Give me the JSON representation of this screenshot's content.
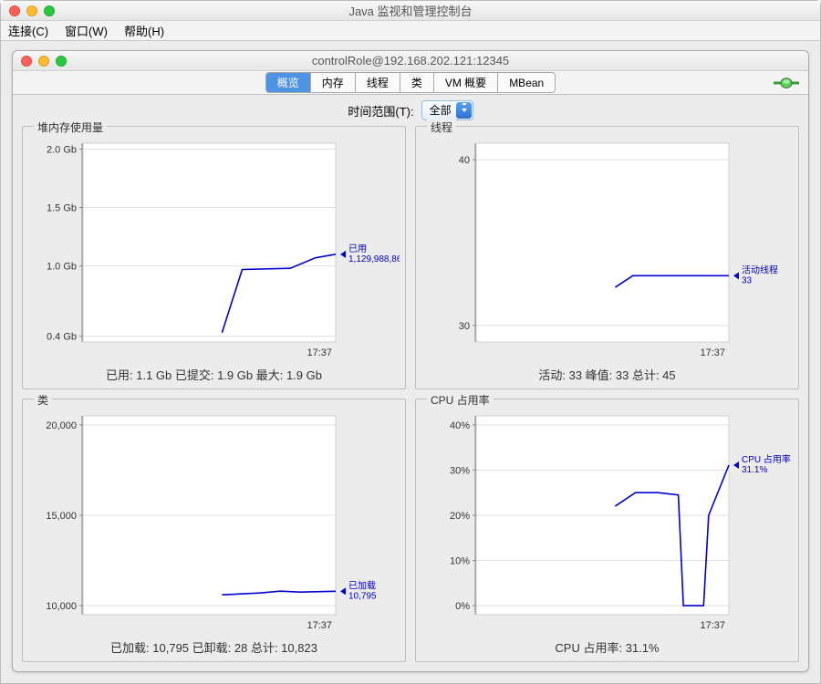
{
  "outer_window": {
    "title": "Java 监视和管理控制台",
    "menus": {
      "connect": "连接(C)",
      "window": "窗口(W)",
      "help": "帮助(H)"
    }
  },
  "inner_window": {
    "title": "controlRole@192.168.202.121:12345",
    "tabs": {
      "overview": "概览",
      "memory": "内存",
      "threads": "线程",
      "classes": "类",
      "vm_summary": "VM 概要",
      "mbeans": "MBean",
      "selected": "overview"
    },
    "time_range": {
      "label": "时间范围(T):",
      "selected": "全部",
      "options": [
        "全部"
      ]
    }
  },
  "panels": {
    "heap": {
      "title": "堆内存使用量",
      "y_ticks": [
        {
          "v": 0.4,
          "label": "0.4 Gb"
        },
        {
          "v": 1.0,
          "label": "1.0 Gb"
        },
        {
          "v": 1.5,
          "label": "1.5 Gb"
        },
        {
          "v": 2.0,
          "label": "2.0 Gb"
        }
      ],
      "y_min": 0.35,
      "y_max": 2.05,
      "x_label": "17:37",
      "series": {
        "points": [
          [
            0.55,
            0.43
          ],
          [
            0.63,
            0.97
          ],
          [
            0.82,
            0.98
          ],
          [
            0.92,
            1.07
          ],
          [
            1.0,
            1.1
          ]
        ]
      },
      "legend": {
        "l1": "已用",
        "l2": "1,129,988,864"
      },
      "status": "已用: 1.1 Gb    已提交: 1.9 Gb    最大: 1.9 Gb",
      "colors": {
        "line": "#0000cd",
        "grid": "#e0e0e0",
        "bg": "#ffffff"
      }
    },
    "threads": {
      "title": "线程",
      "y_ticks": [
        {
          "v": 30,
          "label": "30"
        },
        {
          "v": 40,
          "label": "40"
        }
      ],
      "y_min": 29,
      "y_max": 41,
      "x_label": "17:37",
      "series": {
        "points": [
          [
            0.55,
            32.3
          ],
          [
            0.62,
            33
          ],
          [
            0.83,
            33
          ],
          [
            1.0,
            33
          ]
        ]
      },
      "legend": {
        "l1": "活动线程",
        "l2": "33"
      },
      "status": "活动: 33    峰值: 33    总计: 45",
      "colors": {
        "line": "#0000cd",
        "grid": "#e0e0e0",
        "bg": "#ffffff"
      }
    },
    "classes": {
      "title": "类",
      "y_ticks": [
        {
          "v": 10000,
          "label": "10,000"
        },
        {
          "v": 15000,
          "label": "15,000"
        },
        {
          "v": 20000,
          "label": "20,000"
        }
      ],
      "y_min": 9500,
      "y_max": 20500,
      "x_label": "17:37",
      "series": {
        "points": [
          [
            0.55,
            10600
          ],
          [
            0.7,
            10700
          ],
          [
            0.78,
            10800
          ],
          [
            0.86,
            10750
          ],
          [
            1.0,
            10795
          ]
        ]
      },
      "legend": {
        "l1": "已加载",
        "l2": "10,795"
      },
      "status": "已加载: 10,795    已卸载: 28    总计: 10,823",
      "colors": {
        "line": "#0000cd",
        "grid": "#e0e0e0",
        "bg": "#ffffff"
      }
    },
    "cpu": {
      "title": "CPU 占用率",
      "y_ticks": [
        {
          "v": 0,
          "label": "0%"
        },
        {
          "v": 10,
          "label": "10%"
        },
        {
          "v": 20,
          "label": "20%"
        },
        {
          "v": 30,
          "label": "30%"
        },
        {
          "v": 40,
          "label": "40%"
        }
      ],
      "y_min": -2,
      "y_max": 42,
      "x_label": "17:37",
      "series": {
        "points": [
          [
            0.55,
            22
          ],
          [
            0.63,
            25
          ],
          [
            0.72,
            25
          ],
          [
            0.8,
            24.5
          ],
          [
            0.82,
            0
          ],
          [
            0.9,
            0
          ],
          [
            0.92,
            20
          ],
          [
            1.0,
            31.1
          ]
        ]
      },
      "legend": {
        "l1": "CPU 占用率",
        "l2": "31.1%"
      },
      "status": "CPU 占用率: 31.1%",
      "colors": {
        "line": "#0000cd",
        "grid": "#e0e0e0",
        "bg": "#ffffff"
      }
    }
  }
}
